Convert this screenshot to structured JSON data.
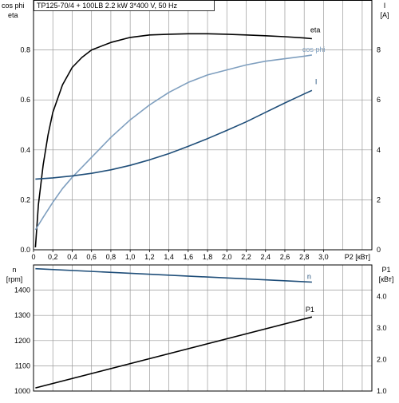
{
  "chart_data": [
    {
      "type": "line",
      "title": "TP125-70/4 + 100LB   2.2 kW   3*400 V, 50 Hz",
      "ylabel_left": [
        "cos phi",
        "eta"
      ],
      "ylabel_right": [
        "I",
        "[A]"
      ],
      "xlabel": "P2 [кВт]",
      "grid": true,
      "xlim": [
        0,
        3.5
      ],
      "ylim_left": [
        0,
        1.0
      ],
      "ylim_right": [
        0,
        10
      ],
      "x_ticks": [
        "0",
        "0,2",
        "0,4",
        "0,6",
        "0,8",
        "1,0",
        "1,2",
        "1,4",
        "1,6",
        "1,8",
        "2,0",
        "2,2",
        "2,4",
        "2,6",
        "2,8",
        "3,0"
      ],
      "y_ticks_left": [
        "0.0",
        "0.2",
        "0.4",
        "0.6",
        "0.8"
      ],
      "y_ticks_right": [
        "0",
        "2",
        "4",
        "6",
        "8"
      ],
      "series": [
        {
          "name": "eta",
          "axis": "left",
          "color": "#000000",
          "x": [
            0.02,
            0.05,
            0.1,
            0.15,
            0.2,
            0.3,
            0.4,
            0.5,
            0.6,
            0.8,
            1.0,
            1.2,
            1.4,
            1.6,
            1.8,
            2.0,
            2.2,
            2.4,
            2.6,
            2.8,
            2.88
          ],
          "y": [
            0.01,
            0.18,
            0.34,
            0.46,
            0.55,
            0.66,
            0.73,
            0.77,
            0.8,
            0.83,
            0.85,
            0.86,
            0.863,
            0.865,
            0.865,
            0.863,
            0.86,
            0.857,
            0.853,
            0.848,
            0.845
          ]
        },
        {
          "name": "cos phi",
          "axis": "left",
          "color": "#7f9fbf",
          "x": [
            0.02,
            0.1,
            0.2,
            0.3,
            0.4,
            0.5,
            0.6,
            0.8,
            1.0,
            1.2,
            1.4,
            1.6,
            1.8,
            2.0,
            2.2,
            2.4,
            2.6,
            2.8,
            2.88
          ],
          "y": [
            0.08,
            0.13,
            0.19,
            0.245,
            0.29,
            0.33,
            0.37,
            0.45,
            0.52,
            0.58,
            0.63,
            0.67,
            0.7,
            0.72,
            0.74,
            0.755,
            0.765,
            0.775,
            0.78
          ]
        },
        {
          "name": "I",
          "axis": "right",
          "color": "#1f4e79",
          "x": [
            0.02,
            0.2,
            0.4,
            0.6,
            0.8,
            1.0,
            1.2,
            1.4,
            1.6,
            1.8,
            2.0,
            2.2,
            2.4,
            2.6,
            2.8,
            2.88
          ],
          "y": [
            2.83,
            2.88,
            2.96,
            3.06,
            3.2,
            3.38,
            3.6,
            3.85,
            4.14,
            4.45,
            4.78,
            5.12,
            5.5,
            5.88,
            6.24,
            6.38
          ]
        }
      ]
    },
    {
      "type": "line",
      "ylabel_left": [
        "n",
        "[rpm]"
      ],
      "ylabel_right": [
        "P1",
        "[кВт]"
      ],
      "grid": true,
      "xlim": [
        0,
        3.5
      ],
      "ylim_left": [
        1000,
        1500
      ],
      "ylim_right": [
        1.0,
        5.0
      ],
      "y_ticks_left": [
        "1000",
        "1100",
        "1200",
        "1300",
        "1400"
      ],
      "y_ticks_right": [
        "1.0",
        "2.0",
        "3.0",
        "4.0"
      ],
      "series": [
        {
          "name": "n",
          "axis": "left",
          "color": "#1f4e79",
          "x": [
            0.02,
            2.88
          ],
          "y": [
            1485,
            1432
          ]
        },
        {
          "name": "P1",
          "axis": "right",
          "color": "#000000",
          "x": [
            0.02,
            2.88
          ],
          "y": [
            1.1,
            3.35
          ]
        }
      ]
    }
  ]
}
